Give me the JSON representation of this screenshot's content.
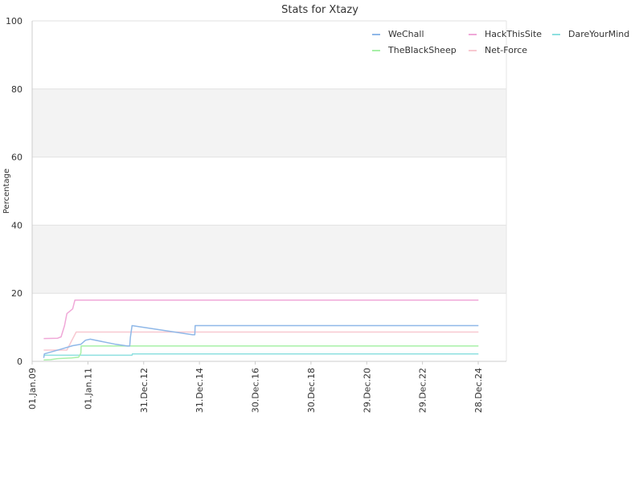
{
  "chart_data": {
    "type": "line",
    "title": "Stats for Xtazy",
    "xlabel": "",
    "ylabel": "Percentage",
    "ylim": [
      0,
      100
    ],
    "xlim": [
      "2009-01-01",
      "2025-12-31"
    ],
    "yticks": [
      0,
      20,
      40,
      60,
      80,
      100
    ],
    "xticks": [
      {
        "label": "01.Jan.09",
        "date": "2009-01-01"
      },
      {
        "label": "01.Jan.11",
        "date": "2011-01-01"
      },
      {
        "label": "31.Dec.12",
        "date": "2012-12-31"
      },
      {
        "label": "31.Dec.14",
        "date": "2014-12-31"
      },
      {
        "label": "30.Dec.16",
        "date": "2016-12-30"
      },
      {
        "label": "30.Dec.18",
        "date": "2018-12-30"
      },
      {
        "label": "29.Dec.20",
        "date": "2020-12-29"
      },
      {
        "label": "29.Dec.22",
        "date": "2022-12-29"
      },
      {
        "label": "28.Dec.24",
        "date": "2024-12-28"
      }
    ],
    "grid": true,
    "legend_position": "top-right",
    "series": [
      {
        "name": "WeChall",
        "color": "#8fb8e8",
        "points": [
          [
            "2009-06-01",
            1.0
          ],
          [
            "2009-06-10",
            2.2
          ],
          [
            "2010-01-01",
            3.5
          ],
          [
            "2010-06-15",
            4.6
          ],
          [
            "2010-10-01",
            5.0
          ],
          [
            "2010-12-01",
            6.2
          ],
          [
            "2011-02-01",
            6.5
          ],
          [
            "2012-01-01",
            5.0
          ],
          [
            "2012-06-01",
            4.5
          ],
          [
            "2012-07-01",
            4.5
          ],
          [
            "2012-07-10",
            7.0
          ],
          [
            "2012-08-01",
            10.5
          ],
          [
            "2014-10-01",
            7.8
          ],
          [
            "2014-11-01",
            7.8
          ],
          [
            "2014-11-05",
            10.5
          ],
          [
            "2024-12-31",
            10.5
          ]
        ]
      },
      {
        "name": "HackThisSite",
        "color": "#f0a8d8",
        "points": [
          [
            "2009-06-01",
            6.7
          ],
          [
            "2009-12-01",
            6.8
          ],
          [
            "2010-01-15",
            7.2
          ],
          [
            "2010-03-01",
            10.5
          ],
          [
            "2010-04-01",
            14.0
          ],
          [
            "2010-06-15",
            15.4
          ],
          [
            "2010-07-15",
            18.0
          ],
          [
            "2024-12-31",
            18.0
          ]
        ]
      },
      {
        "name": "DareYourMind",
        "color": "#8ee0e0",
        "points": [
          [
            "2009-06-01",
            1.8
          ],
          [
            "2012-08-01",
            1.8
          ],
          [
            "2012-08-05",
            2.2
          ],
          [
            "2024-12-31",
            2.2
          ]
        ]
      },
      {
        "name": "TheBlackSheep",
        "color": "#a8f0a8",
        "points": [
          [
            "2009-06-01",
            0.4
          ],
          [
            "2009-09-01",
            0.5
          ],
          [
            "2009-12-01",
            0.8
          ],
          [
            "2010-06-01",
            1.0
          ],
          [
            "2010-09-01",
            1.2
          ],
          [
            "2010-10-01",
            2.4
          ],
          [
            "2010-10-05",
            4.5
          ],
          [
            "2024-12-31",
            4.5
          ]
        ]
      },
      {
        "name": "Net-Force",
        "color": "#f8c8d0",
        "points": [
          [
            "2009-06-01",
            3.3
          ],
          [
            "2010-04-01",
            3.3
          ],
          [
            "2010-06-01",
            6.0
          ],
          [
            "2010-08-01",
            8.6
          ],
          [
            "2024-12-31",
            8.6
          ]
        ]
      }
    ],
    "legend_order": [
      "WeChall",
      "HackThisSite",
      "DareYourMind",
      "TheBlackSheep",
      "Net-Force"
    ]
  }
}
